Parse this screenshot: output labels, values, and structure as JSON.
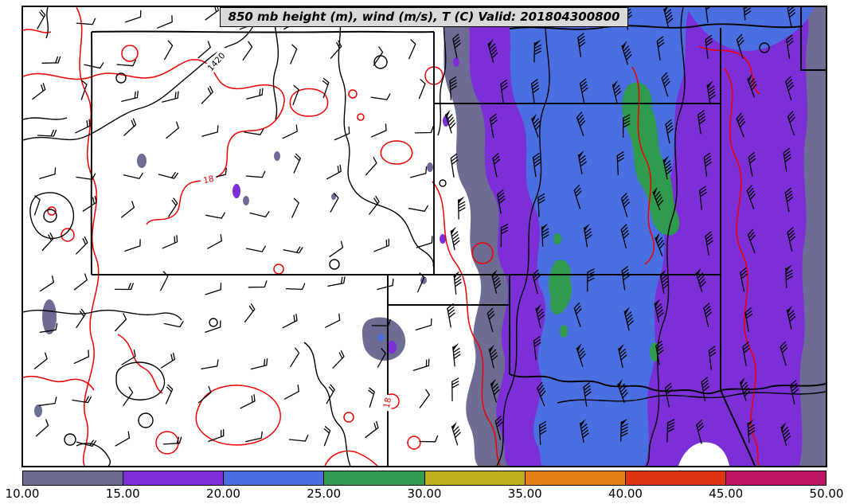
{
  "title": "850 mb height (m), wind (m/s), T (C) Valid: 201804300800",
  "contour_labels": {
    "height_label": "1420",
    "temp_label_1": "18",
    "temp_label_2": "18"
  },
  "colorbar": {
    "ticks": [
      "10.00",
      "15.00",
      "20.00",
      "25.00",
      "30.00",
      "35.00",
      "40.00",
      "45.00",
      "50.00"
    ],
    "segment_colors": [
      "#6c6c94",
      "#7c2fd6",
      "#4a6fe0",
      "#2e9b4e",
      "#c0ae1c",
      "#e6801a",
      "#de3413",
      "#c01468"
    ]
  },
  "map_colors": {
    "shade_10_15": "#6c6c94",
    "shade_15_20": "#7c2fd6",
    "shade_20_25": "#4a6fe0",
    "shade_25_30": "#2e9b4e",
    "temp_contour": "#f00000",
    "height_contour": "#000000",
    "state_border": "#000000"
  },
  "chart_data": {
    "type": "heatmap",
    "title": "850 mb height (m), wind (m/s), T (C) Valid: 201804300800",
    "pressure_level_mb": 850,
    "valid_time": "201804300800",
    "fields": [
      {
        "name": "geopotential height",
        "units": "m",
        "style": "black contour lines",
        "visible_contour_labels": [
          "1420"
        ]
      },
      {
        "name": "temperature",
        "units": "C",
        "style": "red contour lines",
        "visible_contour_labels": [
          "18",
          "18"
        ]
      },
      {
        "name": "wind",
        "units": "m/s",
        "style": "wind barbs plus filled wind-speed shading"
      }
    ],
    "colorbar": {
      "orientation": "horizontal",
      "position": "bottom",
      "range": [
        10,
        50
      ],
      "tick_values": [
        10,
        15,
        20,
        25,
        30,
        35,
        40,
        45,
        50
      ],
      "tick_labels": [
        "10.00",
        "15.00",
        "20.00",
        "25.00",
        "30.00",
        "35.00",
        "40.00",
        "45.00",
        "50.00"
      ],
      "segment_colors": [
        "#6c6c94",
        "#7c2fd6",
        "#4a6fe0",
        "#2e9b4e",
        "#c0ae1c",
        "#e6801a",
        "#de3413",
        "#c01468"
      ]
    },
    "shaded_field_summary": "Wind speed shading covers the eastern half of the domain: broad 10-15 m/s (slate) and 15-20 m/s (purple) areas flank a north-south 20-25 m/s (blue) jet axis with embedded 25-30 m/s (green) maxima; the western half is unshaded (below 10 m/s). Light variable barbs west, strong southerly barbs east."
  }
}
